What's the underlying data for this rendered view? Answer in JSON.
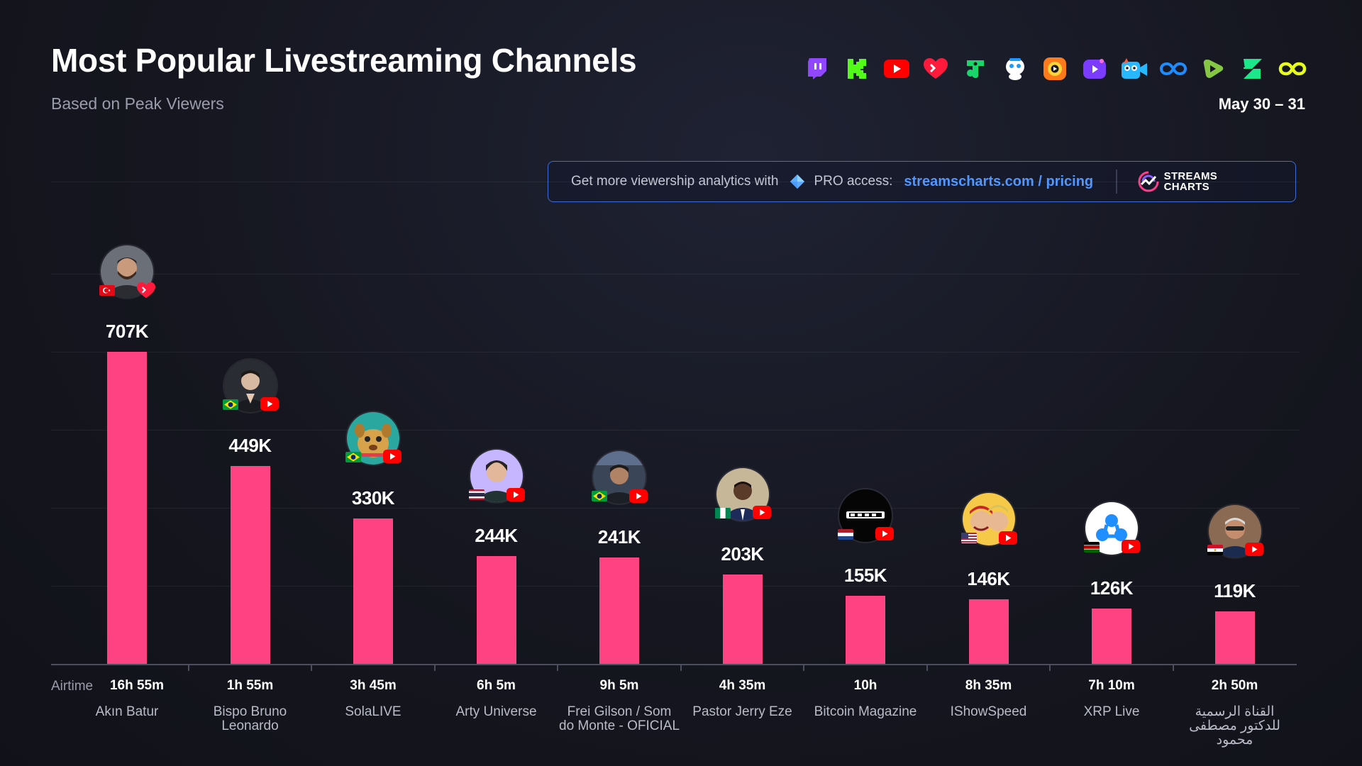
{
  "header": {
    "title": "Most Popular Livestreaming Channels",
    "subtitle": "Based on Peak Viewers",
    "date": "May 30 – 31"
  },
  "platform_icons": [
    "twitch-icon",
    "kick-icon",
    "youtube-icon",
    "vk-heart-icon",
    "trovo-icon",
    "bigo-icon",
    "afreecatv-icon",
    "chzzk-icon",
    "openrec-icon",
    "infinity-icon",
    "rumble-icon",
    "zap-icon",
    "loop-icon"
  ],
  "promo": {
    "text": "Get more viewership analytics with",
    "pro": "PRO access:",
    "link": "streamscharts.com / pricing",
    "logo_text": "STREAMS\nCHARTS"
  },
  "colors": {
    "bar": "#ff4382",
    "background": "#15161f",
    "accent": "#4f96ff",
    "promo_border": "#3d6cd6"
  },
  "axis": {
    "airtime_label": "Airtime"
  },
  "chart_data": {
    "type": "bar",
    "title": "Most Popular Livestreaming Channels",
    "subtitle": "Based on Peak Viewers",
    "ylabel": "",
    "ylim": [
      0,
      860000
    ],
    "grid": true,
    "categories": [
      "Akın Batur",
      "Bispo Bruno Leonardo",
      "SolaLIVE",
      "Arty Universe",
      "Frei Gilson / Som do Monte - OFICIAL",
      "Pastor Jerry Eze",
      "Bitcoin Magazine",
      "IShowSpeed",
      "XRP Live",
      "القناة الرسمية للدكتور مصطفى محمود"
    ],
    "values": [
      707000,
      449000,
      330000,
      244000,
      241000,
      203000,
      155000,
      146000,
      126000,
      119000
    ],
    "value_labels": [
      "707K",
      "449K",
      "330K",
      "244K",
      "241K",
      "203K",
      "155K",
      "146K",
      "126K",
      "119K"
    ],
    "airtime": [
      "16h 55m",
      "1h 55m",
      "3h 45m",
      "6h 5m",
      "9h 5m",
      "4h 35m",
      "10h",
      "8h 35m",
      "7h 10m",
      "2h 50m"
    ],
    "flags": [
      "turkey-flag",
      "brazil-flag",
      "brazil-flag",
      "thailand-flag",
      "brazil-flag",
      "nigeria-flag",
      "netherlands-flag",
      "usa-flag",
      "kenya-flag",
      "egypt-flag"
    ],
    "platforms": [
      "vk-heart-icon",
      "youtube-icon",
      "youtube-icon",
      "youtube-icon",
      "youtube-icon",
      "youtube-icon",
      "youtube-icon",
      "youtube-icon",
      "youtube-icon",
      "youtube-icon"
    ]
  }
}
